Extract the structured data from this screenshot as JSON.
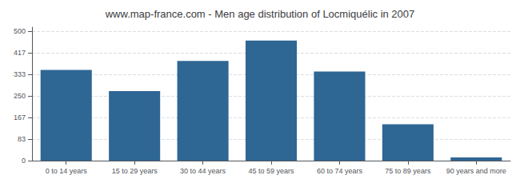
{
  "chart_data": {
    "type": "bar",
    "title": "www.map-france.com - Men age distribution of Locmiquélic in 2007",
    "categories": [
      "0 to 14 years",
      "15 to 29 years",
      "30 to 44 years",
      "45 to 59 years",
      "60 to 74 years",
      "75 to 89 years",
      "90 years and more"
    ],
    "values": [
      350,
      268,
      385,
      463,
      344,
      140,
      12
    ],
    "color": "#2e6694",
    "ylim": [
      0,
      515
    ],
    "yticks": [
      0,
      83,
      167,
      250,
      333,
      417,
      500
    ],
    "grid": true
  }
}
